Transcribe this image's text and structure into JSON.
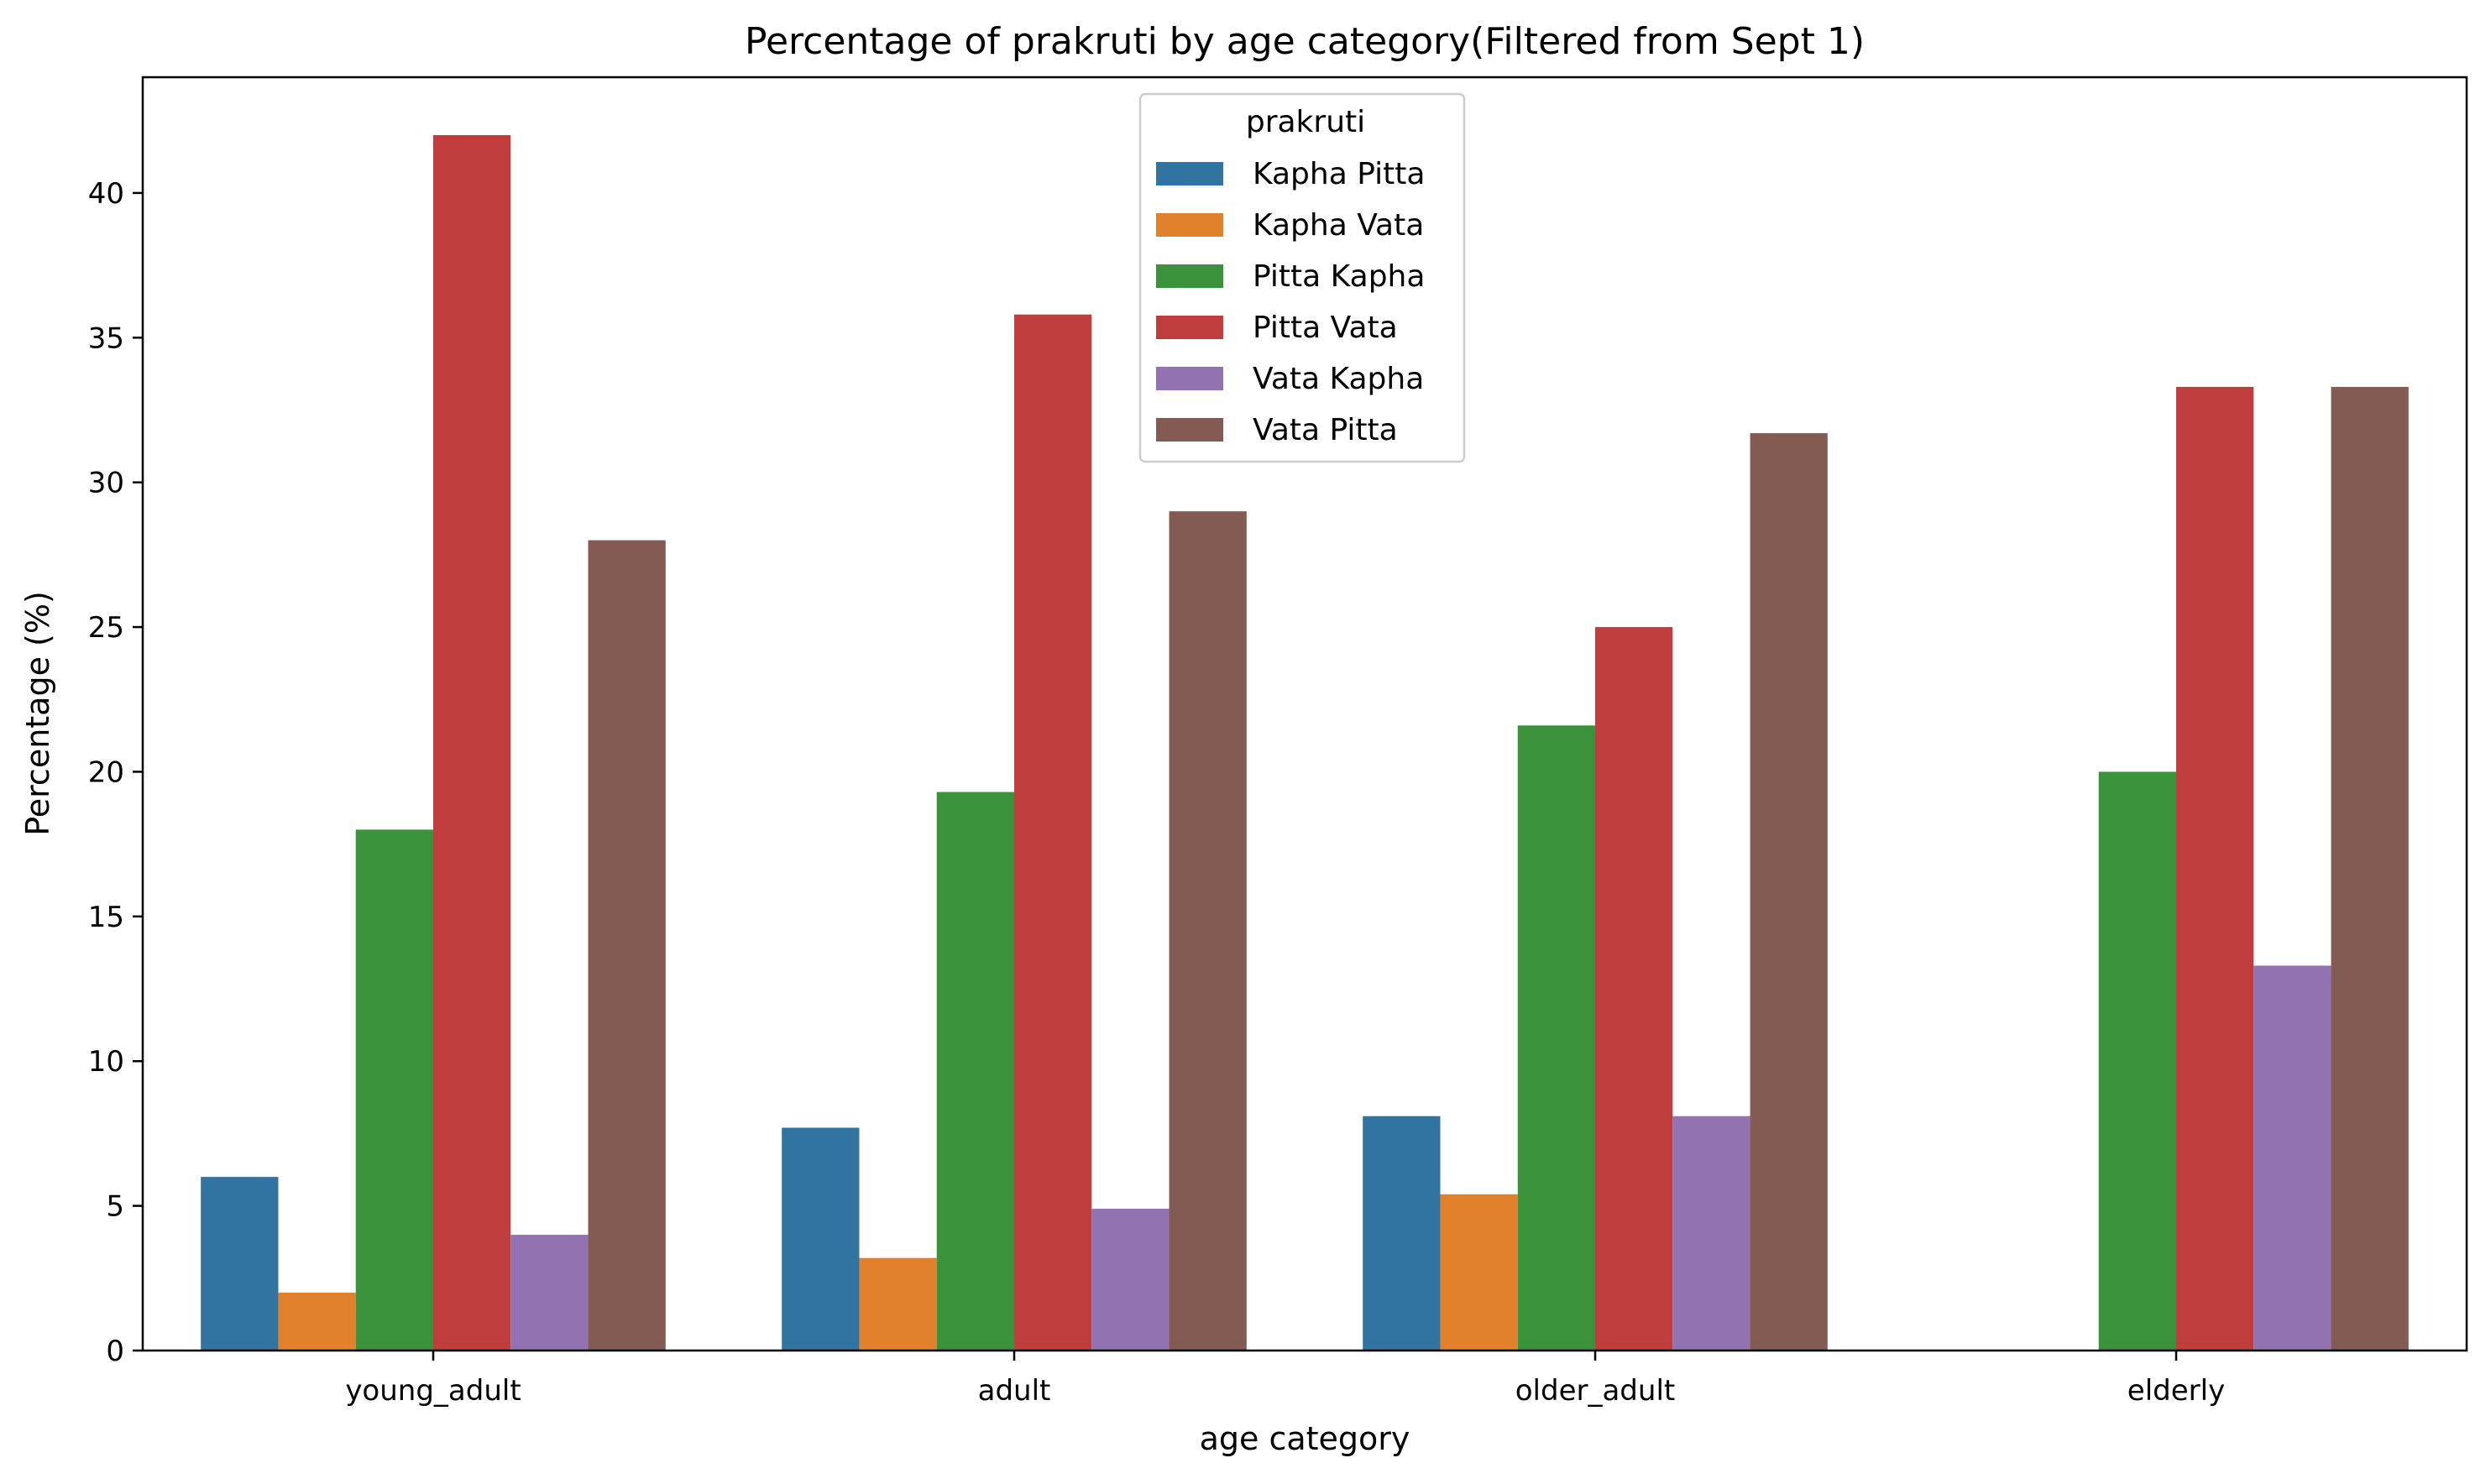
{
  "chart_data": {
    "type": "bar",
    "title": "Percentage of prakruti by age category(Filtered from Sept 1)",
    "xlabel": "age category",
    "ylabel": "Percentage (%)",
    "ylim": [
      0,
      44
    ],
    "yticks": [
      0,
      5,
      10,
      15,
      20,
      25,
      30,
      35,
      40
    ],
    "categories": [
      "young_adult",
      "adult",
      "older_adult",
      "elderly"
    ],
    "legend": {
      "title": "prakruti",
      "position": "top-center"
    },
    "grid": false,
    "series": [
      {
        "name": "Kapha Pitta",
        "color": "#3274a1",
        "values": [
          6.0,
          7.7,
          8.1,
          0
        ]
      },
      {
        "name": "Kapha Vata",
        "color": "#e1812c",
        "values": [
          2.0,
          3.2,
          5.4,
          0
        ]
      },
      {
        "name": "Pitta Kapha",
        "color": "#3a923a",
        "values": [
          18.0,
          19.3,
          21.6,
          20.0
        ]
      },
      {
        "name": "Pitta Vata",
        "color": "#c03d3e",
        "values": [
          42.0,
          35.8,
          25.0,
          33.3
        ]
      },
      {
        "name": "Vata Kapha",
        "color": "#9372b2",
        "values": [
          4.0,
          4.9,
          8.1,
          13.3
        ]
      },
      {
        "name": "Vata Pitta",
        "color": "#845b53",
        "values": [
          28.0,
          29.0,
          31.7,
          33.3
        ]
      }
    ]
  }
}
